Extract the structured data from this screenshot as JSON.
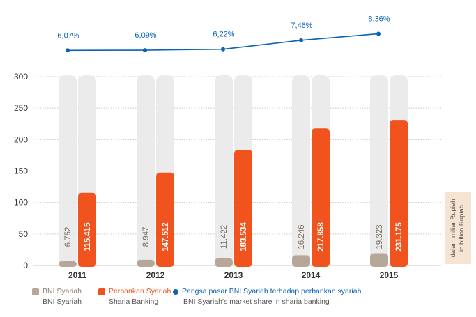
{
  "chart_data": {
    "type": "bar",
    "categories": [
      "2011",
      "2012",
      "2013",
      "2014",
      "2015"
    ],
    "series": [
      {
        "name": "BNI Syariah",
        "values": [
          6.752,
          8.947,
          11.422,
          16.246,
          19.323
        ],
        "labels": [
          "6.752",
          "8.947",
          "11.422",
          "16.246",
          "19.323"
        ],
        "color": "#b6a798"
      },
      {
        "name": "Perbankan Syariah",
        "values": [
          115.415,
          147.512,
          183.534,
          217.858,
          231.175
        ],
        "labels": [
          "115.415",
          "147.512",
          "183.534",
          "217.858",
          "231.175"
        ],
        "color": "#f0531e"
      }
    ],
    "line_series": {
      "name": "Pangsa pasar BNI Syariah terhadap perbankan syariah",
      "values": [
        6.07,
        6.09,
        6.22,
        7.46,
        8.36
      ],
      "labels": [
        "6,07%",
        "6,09%",
        "6,22%",
        "7,46%",
        "8,36%"
      ],
      "color": "#0a63b4"
    },
    "ylim": [
      0,
      300
    ],
    "yticks": [
      0,
      50,
      100,
      150,
      200,
      250,
      300
    ],
    "grid": true,
    "legend_position": "bottom-left",
    "unit_label": [
      "dalam miliar Rupiah",
      "in billion Rupiah"
    ]
  },
  "legend": {
    "bni": {
      "label": "BNI Syariah",
      "sub": "BNI Syariah"
    },
    "industry": {
      "label": "Perbankan Syariah",
      "sub": "Sharia Banking"
    },
    "share": {
      "label": "Pangsa pasar BNI Syariah terhadap perbankan syariah",
      "sub": "BNI Syariah's market share in sharia banking"
    }
  },
  "colors": {
    "bni": "#b6a798",
    "industry": "#f0531e",
    "share": "#0a63b4",
    "bg_bar": "#ebebeb",
    "grid": "#c9c9c9"
  }
}
